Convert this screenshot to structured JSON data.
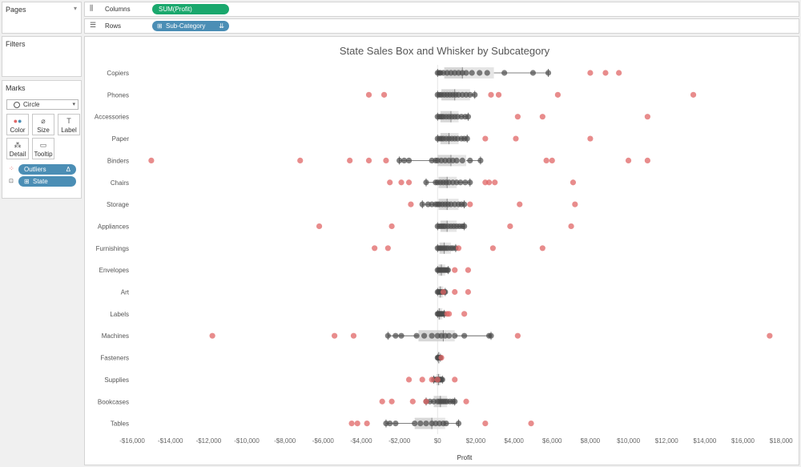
{
  "sidebar": {
    "pages_title": "Pages",
    "filters_title": "Filters",
    "marks_title": "Marks",
    "mark_type": "Circle",
    "buttons": [
      "Color",
      "Size",
      "Label",
      "Detail",
      "Tooltip"
    ],
    "pills": [
      {
        "label": "Outliers",
        "suffix": "Δ"
      },
      {
        "label": "State"
      }
    ]
  },
  "shelves": {
    "columns_label": "Columns",
    "columns_pill": "SUM(Profit)",
    "rows_label": "Rows",
    "rows_pill": "Sub-Category"
  },
  "chart_data": {
    "type": "scatter",
    "title": "State Sales Box and Whisker by Subcategory",
    "xlabel": "Profit",
    "xlim": [
      -16800,
      19000
    ],
    "xticks": [
      -16000,
      -14000,
      -12000,
      -10000,
      -8000,
      -6000,
      -4000,
      -2000,
      0,
      2000,
      4000,
      6000,
      8000,
      10000,
      12000,
      14000,
      16000,
      18000
    ],
    "xtick_labels": [
      "-$16,000",
      "-$14,000",
      "-$12,000",
      "-$10,000",
      "-$8,000",
      "-$6,000",
      "-$4,000",
      "-$2,000",
      "$0",
      "$2,000",
      "$4,000",
      "$6,000",
      "$8,000",
      "$10,000",
      "$12,000",
      "$14,000",
      "$16,000",
      "$18,000"
    ],
    "colors": {
      "outlier": "#e06666",
      "point": "#4a4a4a",
      "box": "#bdbdbd"
    },
    "categories": [
      "Copiers",
      "Phones",
      "Accessories",
      "Paper",
      "Binders",
      "Chairs",
      "Storage",
      "Appliances",
      "Furnishings",
      "Envelopes",
      "Art",
      "Labels",
      "Machines",
      "Fasteners",
      "Supplies",
      "Bookcases",
      "Tables"
    ],
    "boxes": [
      {
        "name": "Copiers",
        "whisker_low": 0,
        "q1": 350,
        "median": 1300,
        "q3": 2950,
        "whisker_high": 5800
      },
      {
        "name": "Phones",
        "whisker_low": 0,
        "q1": 200,
        "median": 900,
        "q3": 1700,
        "whisker_high": 1950
      },
      {
        "name": "Accessories",
        "whisker_low": 0,
        "q1": 150,
        "median": 700,
        "q3": 1100,
        "whisker_high": 1600
      },
      {
        "name": "Paper",
        "whisker_low": 0,
        "q1": 150,
        "median": 600,
        "q3": 1100,
        "whisker_high": 1550
      },
      {
        "name": "Binders",
        "whisker_low": -2000,
        "q1": 0,
        "median": 700,
        "q3": 1500,
        "whisker_high": 2250
      },
      {
        "name": "Chairs",
        "whisker_low": -600,
        "q1": 50,
        "median": 500,
        "q3": 1000,
        "whisker_high": 1700
      },
      {
        "name": "Storage",
        "whisker_low": -800,
        "q1": 50,
        "median": 500,
        "q3": 1100,
        "whisker_high": 1400
      },
      {
        "name": "Appliances",
        "whisker_low": 0,
        "q1": 150,
        "median": 500,
        "q3": 1000,
        "whisker_high": 1400
      },
      {
        "name": "Furnishings",
        "whisker_low": 0,
        "q1": 100,
        "median": 350,
        "q3": 700,
        "whisker_high": 950
      },
      {
        "name": "Envelopes",
        "whisker_low": 0,
        "q1": 50,
        "median": 200,
        "q3": 400,
        "whisker_high": 550
      },
      {
        "name": "Art",
        "whisker_low": 0,
        "q1": 50,
        "median": 150,
        "q3": 300,
        "whisker_high": 400
      },
      {
        "name": "Labels",
        "whisker_low": 0,
        "q1": 30,
        "median": 100,
        "q3": 250,
        "whisker_high": 350
      },
      {
        "name": "Machines",
        "whisker_low": -2600,
        "q1": -1000,
        "median": 300,
        "q3": 900,
        "whisker_high": 2800
      },
      {
        "name": "Fasteners",
        "whisker_low": 0,
        "q1": 20,
        "median": 60,
        "q3": 120,
        "whisker_high": 150
      },
      {
        "name": "Supplies",
        "whisker_low": -200,
        "q1": -50,
        "median": 50,
        "q3": 150,
        "whisker_high": 250
      },
      {
        "name": "Bookcases",
        "whisker_low": -600,
        "q1": -200,
        "median": 150,
        "q3": 500,
        "whisker_high": 900
      },
      {
        "name": "Tables",
        "whisker_low": -2700,
        "q1": -1200,
        "median": -300,
        "q3": 400,
        "whisker_high": 1100
      }
    ],
    "points": [
      {
        "name": "Copiers",
        "values": [
          0,
          80,
          150,
          300,
          500,
          700,
          900,
          1100,
          1300,
          1500,
          1800,
          2200,
          2600,
          3500,
          5000,
          5800
        ]
      },
      {
        "name": "Phones",
        "values": [
          0,
          100,
          200,
          350,
          500,
          650,
          800,
          950,
          1100,
          1300,
          1500,
          1700,
          1950
        ]
      },
      {
        "name": "Accessories",
        "values": [
          0,
          100,
          200,
          300,
          450,
          600,
          750,
          900,
          1050,
          1250,
          1450,
          1600
        ]
      },
      {
        "name": "Paper",
        "values": [
          0,
          100,
          200,
          300,
          450,
          600,
          750,
          900,
          1050,
          1250,
          1400,
          1550
        ]
      },
      {
        "name": "Binders",
        "values": [
          -2000,
          -1750,
          -1500,
          -300,
          -100,
          0,
          200,
          400,
          600,
          800,
          1000,
          1300,
          1700,
          2250
        ]
      },
      {
        "name": "Chairs",
        "values": [
          -600,
          -100,
          0,
          150,
          300,
          450,
          600,
          800,
          1000,
          1200,
          1450,
          1700
        ]
      },
      {
        "name": "Storage",
        "values": [
          -800,
          -500,
          -300,
          -100,
          0,
          100,
          250,
          400,
          550,
          700,
          900,
          1100,
          1250,
          1400
        ]
      },
      {
        "name": "Appliances",
        "values": [
          0,
          100,
          200,
          300,
          400,
          550,
          700,
          850,
          1000,
          1150,
          1300,
          1400
        ]
      },
      {
        "name": "Furnishings",
        "values": [
          0,
          80,
          160,
          250,
          350,
          450,
          550,
          700,
          800,
          950
        ]
      },
      {
        "name": "Envelopes",
        "values": [
          0,
          60,
          120,
          200,
          280,
          350,
          430,
          500,
          550
        ]
      },
      {
        "name": "Art",
        "values": [
          0,
          50,
          100,
          150,
          200,
          250,
          300,
          350,
          400
        ]
      },
      {
        "name": "Labels",
        "values": [
          0,
          40,
          80,
          120,
          170,
          220,
          280,
          350
        ]
      },
      {
        "name": "Machines",
        "values": [
          -2600,
          -2200,
          -1900,
          -1100,
          -700,
          -300,
          0,
          200,
          400,
          600,
          900,
          1400,
          2700,
          2800
        ]
      },
      {
        "name": "Fasteners",
        "values": [
          0,
          30,
          60,
          90,
          120,
          150
        ]
      },
      {
        "name": "Supplies",
        "values": [
          -200,
          -120,
          -50,
          0,
          50,
          100,
          150,
          200,
          250
        ]
      },
      {
        "name": "Bookcases",
        "values": [
          -600,
          -400,
          -200,
          0,
          100,
          200,
          300,
          400,
          500,
          650,
          800,
          900
        ]
      },
      {
        "name": "Tables",
        "values": [
          -2700,
          -2500,
          -2200,
          -1200,
          -900,
          -600,
          -300,
          -100,
          100,
          300,
          450,
          1100
        ]
      }
    ],
    "outliers": [
      {
        "name": "Copiers",
        "values": [
          8000,
          8800,
          9500
        ]
      },
      {
        "name": "Phones",
        "values": [
          -3600,
          -2800,
          2800,
          3200,
          6300,
          13400
        ]
      },
      {
        "name": "Accessories",
        "values": [
          4200,
          5500,
          11000
        ]
      },
      {
        "name": "Paper",
        "values": [
          2500,
          4100,
          8000
        ]
      },
      {
        "name": "Binders",
        "values": [
          -15000,
          -7200,
          -4600,
          -3600,
          -2700,
          5700,
          6000,
          10000,
          11000
        ]
      },
      {
        "name": "Chairs",
        "values": [
          -2500,
          -1900,
          -1500,
          2500,
          2700,
          3000,
          7100
        ]
      },
      {
        "name": "Storage",
        "values": [
          -1400,
          1700,
          4300,
          7200
        ]
      },
      {
        "name": "Appliances",
        "values": [
          -6200,
          -2400,
          3800,
          7000
        ]
      },
      {
        "name": "Furnishings",
        "values": [
          -3300,
          -2600,
          1100,
          2900,
          5500
        ]
      },
      {
        "name": "Envelopes",
        "values": [
          900,
          1600
        ]
      },
      {
        "name": "Art",
        "values": [
          300,
          900,
          1600
        ]
      },
      {
        "name": "Labels",
        "values": [
          500,
          600,
          1400
        ]
      },
      {
        "name": "Machines",
        "values": [
          -11800,
          -5400,
          -4400,
          4200,
          17400
        ]
      },
      {
        "name": "Fasteners",
        "values": [
          200
        ]
      },
      {
        "name": "Supplies",
        "values": [
          -1500,
          -800,
          -300,
          0,
          900
        ]
      },
      {
        "name": "Bookcases",
        "values": [
          -2900,
          -2400,
          -1300,
          -600,
          1500
        ]
      },
      {
        "name": "Tables",
        "values": [
          -4500,
          -4200,
          -3700,
          2500,
          4900
        ]
      }
    ]
  }
}
